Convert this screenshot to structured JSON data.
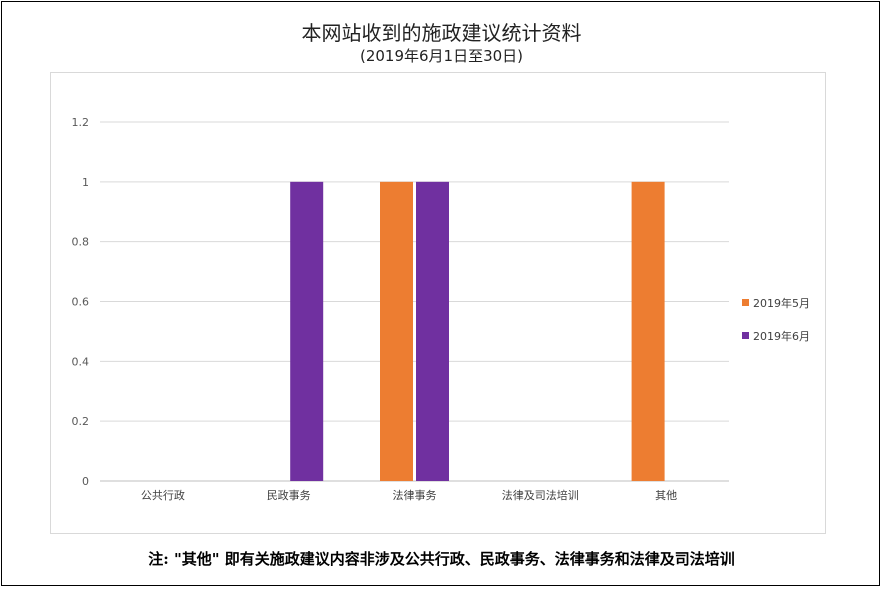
{
  "title": "本网站收到的施政建议统计资料",
  "subtitle": "(2019年6月1日至30日)",
  "footnote": "注: \"其他\" 即有关施政建议内容非涉及公共行政、民政事务、法律事务和法律及司法培训",
  "chart_data": {
    "type": "bar",
    "categories": [
      "公共行政",
      "民政事务",
      "法律事务",
      "法律及司法培训",
      "其他"
    ],
    "series": [
      {
        "name": "2019年5月",
        "color": "#ed7d31",
        "values": [
          0,
          0,
          1,
          0,
          1
        ]
      },
      {
        "name": "2019年6月",
        "color": "#7030a0",
        "values": [
          0,
          1,
          1,
          0,
          0
        ]
      }
    ],
    "ylim": [
      0,
      1.2
    ],
    "yticks": [
      "0",
      "0.2",
      "0.4",
      "0.6",
      "0.8",
      "1",
      "1.2"
    ],
    "grid": true,
    "legend_position": "right"
  }
}
